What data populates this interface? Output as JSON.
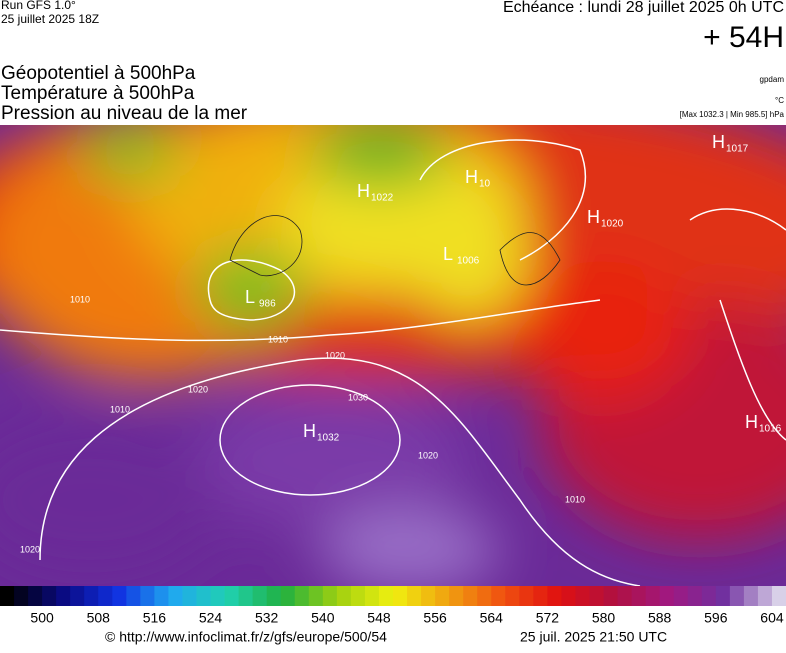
{
  "header": {
    "run": "Run GFS 1.0°",
    "run_date": "25 juillet 2025 18Z",
    "forecast": "Echéance : lundi 28 juillet 2025 0h UTC",
    "lead": "+ 54H",
    "fields": [
      "Géopotentiel à 500hPa",
      "Température à 500hPa",
      "Pression au niveau de la mer"
    ],
    "units": [
      "gpdam",
      "°C",
      "[Max 1032.3 | Min 985.5] hPa"
    ]
  },
  "map": {
    "centers": [
      {
        "kind": "H",
        "value": "1017"
      },
      {
        "kind": "H",
        "value": "1022"
      },
      {
        "kind": "H",
        "value": "10"
      },
      {
        "kind": "H",
        "value": "1020"
      },
      {
        "kind": "L",
        "value": "1006"
      },
      {
        "kind": "L",
        "value": "986"
      },
      {
        "kind": "H",
        "value": "1032"
      },
      {
        "kind": "H",
        "value": "1016"
      }
    ],
    "contour_labels": [
      "1010",
      "1020",
      "1030",
      "1020",
      "1010",
      "1020",
      "1010",
      "1010",
      "1020"
    ]
  },
  "colorbar": {
    "lim": [
      494,
      606
    ],
    "ticks": [
      500,
      508,
      516,
      524,
      532,
      540,
      548,
      556,
      564,
      572,
      580,
      588,
      596,
      604
    ],
    "stops": [
      "#000000",
      "#0a0a80",
      "#1030e0",
      "#20a8f0",
      "#20d0b0",
      "#20b040",
      "#a0d010",
      "#f0f010",
      "#f0a010",
      "#f05010",
      "#e01010",
      "#b01040",
      "#a01880",
      "#7030a0",
      "#d8d0e8"
    ]
  },
  "footer": {
    "url": "© http://www.infoclimat.fr/z/gfs/europe/500/54",
    "timestamp": "25 juil. 2025 21:50 UTC"
  }
}
